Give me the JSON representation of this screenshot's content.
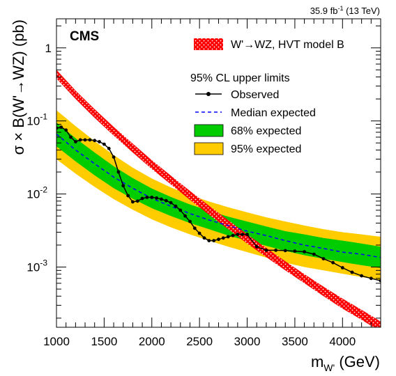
{
  "chart_data": {
    "type": "line",
    "lumi_label": "35.9 fb",
    "lumi_exponent": "-1",
    "lumi_energy": "(13 TeV)",
    "experiment_label": "CMS",
    "xlabel": "m",
    "xlabel_sub": "W'",
    "xlabel_unit": "(GeV)",
    "ylabel": "σ × B(W'→WZ) (pb)",
    "xlim": [
      1000,
      4400
    ],
    "ylim": [
      0.00015,
      2.5
    ],
    "yscale": "log",
    "x_ticks": [
      1000,
      1500,
      2000,
      2500,
      3000,
      3500,
      4000
    ],
    "y_ticks": [
      {
        "value": 1,
        "label": "1"
      },
      {
        "value": 0.1,
        "label": "10",
        "exp": "-1"
      },
      {
        "value": 0.01,
        "label": "10",
        "exp": "-2"
      },
      {
        "value": 0.001,
        "label": "10",
        "exp": "-3"
      }
    ],
    "legend_title": "95% CL upper limits",
    "theory": {
      "name": "W'→WZ, HVT model B",
      "color": "#ff0000",
      "x": [
        1000,
        1200,
        1400,
        1600,
        1800,
        2000,
        2200,
        2400,
        2600,
        2800,
        3000,
        3200,
        3400,
        3600,
        3800,
        4000,
        4200,
        4400
      ],
      "low": [
        0.38,
        0.2,
        0.11,
        0.063,
        0.037,
        0.022,
        0.0135,
        0.0083,
        0.0052,
        0.0033,
        0.0021,
        0.00137,
        0.0009,
        0.0006,
        0.0004,
        0.00027,
        0.00019,
        0.00013
      ],
      "high": [
        0.5,
        0.26,
        0.145,
        0.083,
        0.049,
        0.029,
        0.0178,
        0.011,
        0.0069,
        0.0044,
        0.0028,
        0.00183,
        0.0012,
        0.0008,
        0.00054,
        0.00037,
        0.00026,
        0.00018
      ]
    },
    "band95": {
      "name": "95% expected",
      "color": "#ffcc00",
      "x": [
        1000,
        1200,
        1400,
        1600,
        1800,
        2000,
        2200,
        2400,
        2600,
        2800,
        3000,
        3200,
        3400,
        3600,
        3800,
        4000,
        4200,
        4400
      ],
      "low": [
        0.03,
        0.019,
        0.0125,
        0.0085,
        0.0061,
        0.0045,
        0.0035,
        0.0028,
        0.0023,
        0.0019,
        0.0016,
        0.00135,
        0.00115,
        0.001,
        0.0009,
        0.00081,
        0.00073,
        0.00066
      ],
      "high": [
        0.14,
        0.085,
        0.053,
        0.034,
        0.023,
        0.0163,
        0.0123,
        0.0097,
        0.0079,
        0.0066,
        0.0056,
        0.0048,
        0.0042,
        0.0037,
        0.0033,
        0.003,
        0.0028,
        0.0026
      ]
    },
    "band68": {
      "name": "68% expected",
      "color": "#00cc00",
      "x": [
        1000,
        1200,
        1400,
        1600,
        1800,
        2000,
        2200,
        2400,
        2600,
        2800,
        3000,
        3200,
        3400,
        3600,
        3800,
        4000,
        4200,
        4400
      ],
      "low": [
        0.045,
        0.028,
        0.018,
        0.012,
        0.0086,
        0.0064,
        0.005,
        0.004,
        0.0033,
        0.0027,
        0.0023,
        0.00195,
        0.00167,
        0.00145,
        0.0013,
        0.00117,
        0.00106,
        0.00097
      ],
      "high": [
        0.095,
        0.058,
        0.037,
        0.024,
        0.0165,
        0.0119,
        0.0091,
        0.0072,
        0.0059,
        0.0049,
        0.0042,
        0.0036,
        0.0031,
        0.0028,
        0.0025,
        0.0023,
        0.0021,
        0.0019
      ]
    },
    "median": {
      "name": "Median expected",
      "color": "#0000ff",
      "x": [
        1000,
        1200,
        1400,
        1600,
        1800,
        2000,
        2200,
        2400,
        2600,
        2800,
        3000,
        3200,
        3400,
        3600,
        3800,
        4000,
        4200,
        4400
      ],
      "values": [
        0.066,
        0.04,
        0.026,
        0.017,
        0.012,
        0.0087,
        0.0068,
        0.0054,
        0.0044,
        0.0037,
        0.0031,
        0.0027,
        0.0023,
        0.002,
        0.0018,
        0.0016,
        0.0015,
        0.00135
      ]
    },
    "observed": {
      "name": "Observed",
      "color": "#000000",
      "x": [
        1000,
        1050,
        1100,
        1150,
        1200,
        1250,
        1300,
        1350,
        1400,
        1450,
        1500,
        1550,
        1600,
        1650,
        1700,
        1750,
        1800,
        1850,
        1900,
        1950,
        2000,
        2050,
        2100,
        2150,
        2200,
        2250,
        2300,
        2350,
        2400,
        2450,
        2500,
        2550,
        2600,
        2650,
        2700,
        2750,
        2800,
        2850,
        2900,
        2950,
        3000,
        3100,
        3200,
        3300,
        3400,
        3500,
        3600,
        3700,
        3800,
        3900,
        4000,
        4100,
        4200,
        4300,
        4400
      ],
      "values": [
        0.08,
        0.082,
        0.075,
        0.06,
        0.052,
        0.055,
        0.055,
        0.055,
        0.054,
        0.052,
        0.048,
        0.042,
        0.032,
        0.02,
        0.013,
        0.0095,
        0.0078,
        0.008,
        0.0087,
        0.009,
        0.009,
        0.0088,
        0.0085,
        0.0081,
        0.0076,
        0.0068,
        0.006,
        0.005,
        0.0042,
        0.0034,
        0.0029,
        0.0025,
        0.0023,
        0.0023,
        0.0024,
        0.0025,
        0.0026,
        0.0027,
        0.0028,
        0.0028,
        0.0028,
        0.0019,
        0.0017,
        0.0017,
        0.00168,
        0.00165,
        0.00162,
        0.0015,
        0.0013,
        0.00115,
        0.00098,
        0.00085,
        0.00076,
        0.0007,
        0.00065
      ]
    }
  }
}
